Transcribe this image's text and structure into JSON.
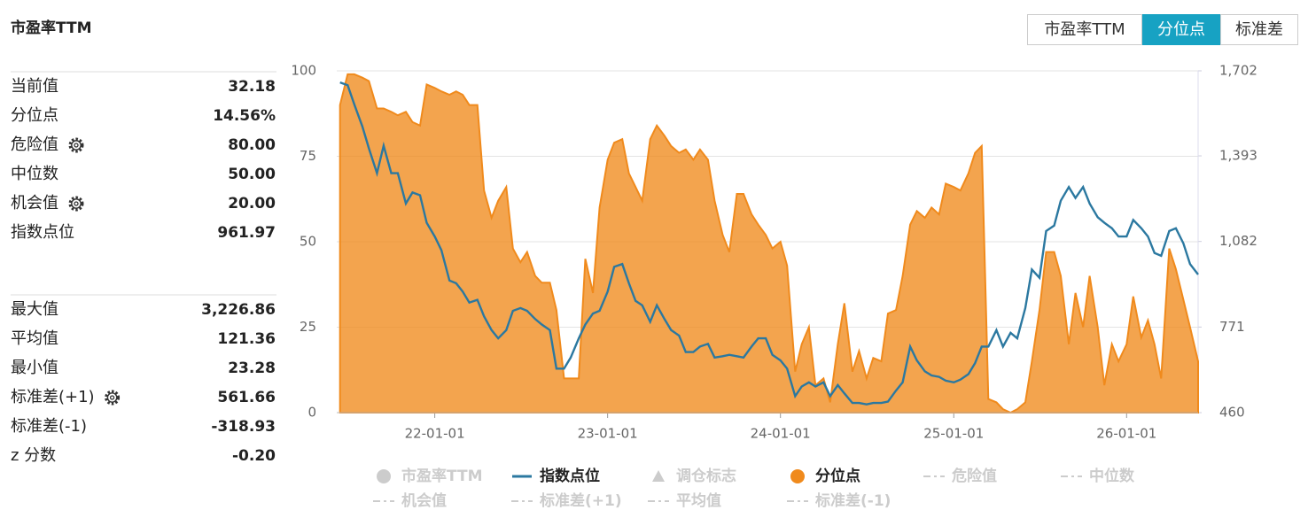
{
  "title": "市盈率TTM",
  "buttons": {
    "items": [
      "市盈率TTM",
      "分位点",
      "标准差"
    ],
    "active": 1
  },
  "stats": {
    "groups": [
      [
        {
          "label": "当前值",
          "value": "32.18",
          "settings": false
        },
        {
          "label": "分位点",
          "value": "14.56%",
          "settings": false
        },
        {
          "label": "危险值",
          "value": "80.00",
          "settings": true
        },
        {
          "label": "中位数",
          "value": "50.00",
          "settings": false
        },
        {
          "label": "机会值",
          "value": "20.00",
          "settings": true
        },
        {
          "label": "指数点位",
          "value": "961.97",
          "settings": false
        }
      ],
      [
        {
          "label": "最大值",
          "value": "3,226.86",
          "settings": false
        },
        {
          "label": "平均值",
          "value": "121.36",
          "settings": false
        },
        {
          "label": "最小值",
          "value": "23.28",
          "settings": false
        },
        {
          "label": "标准差(+1)",
          "value": "561.66",
          "settings": true
        },
        {
          "label": "标准差(-1)",
          "value": "-318.93",
          "settings": false
        },
        {
          "label": "z 分数",
          "value": "-0.20",
          "settings": false
        }
      ]
    ]
  },
  "chart_data": {
    "type": "line",
    "x": [
      "21-06-15",
      "21-07-01",
      "21-07-15",
      "21-08-01",
      "21-08-15",
      "21-09-01",
      "21-09-15",
      "21-10-01",
      "21-10-15",
      "21-11-01",
      "21-11-15",
      "21-12-01",
      "21-12-15",
      "22-01-01",
      "22-01-15",
      "22-02-01",
      "22-02-15",
      "22-03-01",
      "22-03-15",
      "22-04-01",
      "22-04-15",
      "22-05-01",
      "22-05-15",
      "22-06-01",
      "22-06-15",
      "22-07-01",
      "22-07-15",
      "22-08-01",
      "22-08-15",
      "22-09-01",
      "22-09-15",
      "22-10-01",
      "22-10-15",
      "22-11-01",
      "22-11-15",
      "22-12-01",
      "22-12-15",
      "23-01-01",
      "23-01-15",
      "23-02-01",
      "23-02-15",
      "23-03-01",
      "23-03-15",
      "23-04-01",
      "23-04-15",
      "23-05-01",
      "23-05-15",
      "23-06-01",
      "23-06-15",
      "23-07-01",
      "23-07-15",
      "23-08-01",
      "23-08-15",
      "23-09-01",
      "23-09-15",
      "23-10-01",
      "23-10-15",
      "23-11-01",
      "23-11-15",
      "23-12-01",
      "23-12-15",
      "24-01-01",
      "24-01-15",
      "24-02-01",
      "24-02-15",
      "24-03-01",
      "24-03-15",
      "24-04-01",
      "24-04-15",
      "24-05-01",
      "24-05-15",
      "24-06-01",
      "24-06-15",
      "24-07-01",
      "24-07-15",
      "24-08-01",
      "24-08-15",
      "24-09-01",
      "24-09-15",
      "24-10-01",
      "24-10-15",
      "24-11-01",
      "24-11-15",
      "24-12-01",
      "24-12-15",
      "25-01-01",
      "25-01-15",
      "25-02-01",
      "25-02-15",
      "25-03-01",
      "25-03-15",
      "25-04-01",
      "25-04-15",
      "25-05-01",
      "25-05-15",
      "25-06-01",
      "25-06-15",
      "25-07-01",
      "25-07-15",
      "25-08-01",
      "25-08-15",
      "25-09-01",
      "25-09-15",
      "25-10-01",
      "25-10-15",
      "25-11-01",
      "25-11-15",
      "25-12-01",
      "25-12-15",
      "26-01-01",
      "26-01-15",
      "26-02-01",
      "26-02-15",
      "26-03-01",
      "26-03-15",
      "26-04-01",
      "26-04-15",
      "26-05-01",
      "26-05-15",
      "26-06-01"
    ],
    "xlim": [
      "21-06-08",
      "26-06-01"
    ],
    "xticks": [
      "22-01-01",
      "23-01-01",
      "24-01-01",
      "25-01-01",
      "26-01-01"
    ],
    "ylim": [
      0,
      100
    ],
    "yticks": [
      0,
      25,
      50,
      75,
      100
    ],
    "y2lim": [
      460,
      1702
    ],
    "y2ticks": [
      460,
      771,
      {
        "value": 1082,
        "label": "1,082"
      },
      {
        "value": 1393,
        "label": "1,393"
      },
      {
        "value": 1702,
        "label": "1,702"
      }
    ],
    "grid": true,
    "series": [
      {
        "name": "市盈率TTM",
        "marker": "circle",
        "visible": false,
        "color": "#cccccc"
      },
      {
        "name": "指数点位",
        "marker": "line",
        "visible": true,
        "color": "#2b78a0",
        "axis": "y2",
        "style": "line",
        "values": [
          1660,
          1650,
          1580,
          1500,
          1420,
          1330,
          1430,
          1330,
          1330,
          1220,
          1260,
          1250,
          1150,
          1100,
          1050,
          940,
          930,
          900,
          860,
          870,
          810,
          760,
          730,
          760,
          830,
          840,
          830,
          800,
          780,
          760,
          620,
          620,
          660,
          730,
          780,
          820,
          830,
          900,
          990,
          1000,
          930,
          866,
          850,
          790,
          850,
          800,
          760,
          740,
          680,
          680,
          700,
          710,
          660,
          665,
          670,
          665,
          660,
          700,
          730,
          730,
          670,
          650,
          620,
          520,
          555,
          570,
          555,
          570,
          520,
          560,
          530,
          495,
          495,
          490,
          495,
          495,
          500,
          540,
          570,
          700,
          650,
          610,
          595,
          590,
          576,
          570,
          580,
          600,
          640,
          700,
          700,
          760,
          700,
          750,
          730,
          840,
          980,
          950,
          1120,
          1140,
          1230,
          1280,
          1240,
          1280,
          1220,
          1170,
          1150,
          1130,
          1100,
          1100,
          1160,
          1130,
          1100,
          1040,
          1030,
          1120,
          1130,
          1075,
          1000,
          962
        ]
      },
      {
        "name": "调仓标志",
        "marker": "triangle",
        "visible": false,
        "color": "#cccccc"
      },
      {
        "name": "分位点",
        "marker": "circle",
        "visible": true,
        "color": "#f08a1c",
        "axis": "y",
        "style": "area",
        "values": [
          90,
          99,
          99,
          98,
          97,
          89,
          89,
          88,
          87,
          88,
          85,
          84,
          96,
          95,
          94,
          93,
          94,
          93,
          90,
          90,
          65,
          57,
          62,
          66,
          48,
          44,
          47,
          40,
          38,
          38,
          30,
          10,
          10,
          10,
          45,
          35,
          60,
          74,
          79,
          80,
          70,
          66,
          62,
          80,
          84,
          81,
          78,
          76,
          77,
          74,
          77,
          74,
          62,
          52,
          47,
          64,
          64,
          58,
          55,
          52,
          48,
          50,
          43,
          12,
          20,
          25,
          8,
          10,
          3,
          20,
          32,
          12,
          18,
          10,
          16,
          15,
          29,
          30,
          40,
          55,
          59,
          57,
          60,
          58,
          67,
          66,
          65,
          70,
          76,
          78,
          4,
          3,
          1,
          0,
          1,
          3,
          15,
          30,
          47,
          47,
          40,
          20,
          35,
          25,
          40,
          25,
          8,
          20,
          15,
          20,
          34,
          22,
          27,
          20,
          10,
          48,
          42,
          33,
          25,
          15
        ]
      },
      {
        "name": "危险值",
        "marker": "dash",
        "visible": false,
        "color": "#cccccc"
      },
      {
        "name": "中位数",
        "marker": "dash",
        "visible": false,
        "color": "#cccccc"
      },
      {
        "name": "机会值",
        "marker": "dash",
        "visible": false,
        "color": "#cccccc"
      },
      {
        "name": "标准差(+1)",
        "marker": "dash",
        "visible": false,
        "color": "#cccccc"
      },
      {
        "name": "平均值",
        "marker": "dash",
        "visible": false,
        "color": "#cccccc"
      },
      {
        "name": "标准差(-1)",
        "marker": "dash",
        "visible": false,
        "color": "#cccccc"
      }
    ]
  }
}
